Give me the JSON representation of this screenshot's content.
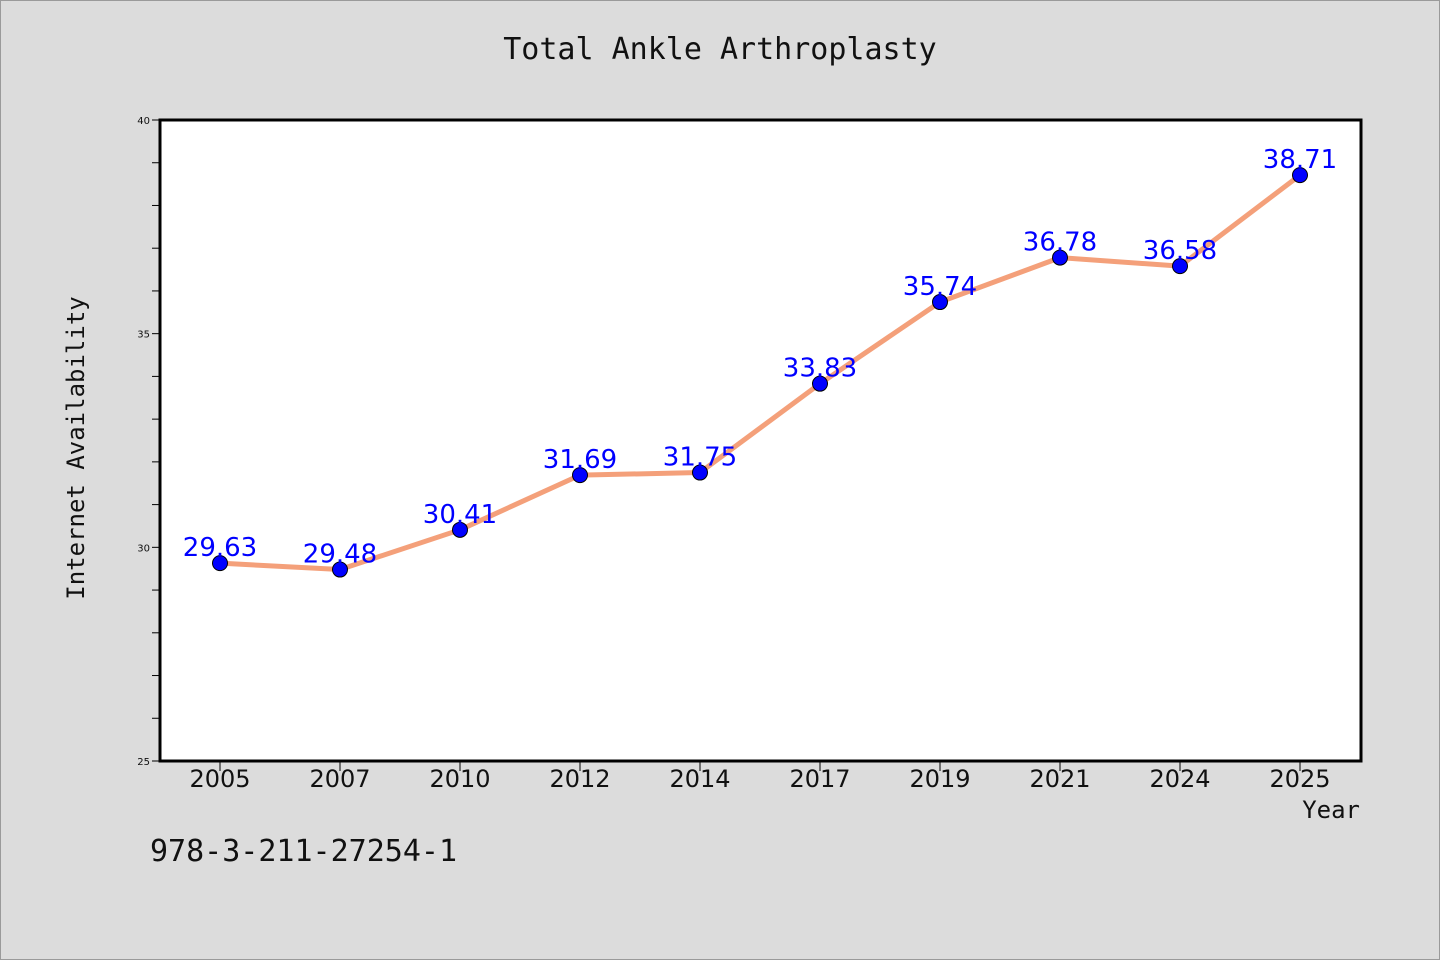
{
  "chart_data": {
    "type": "line",
    "title": "Total Ankle Arthroplasty",
    "xlabel": "Year",
    "ylabel": "Internet Availability",
    "categories": [
      "2005",
      "2007",
      "2010",
      "2012",
      "2014",
      "2017",
      "2019",
      "2021",
      "2024",
      "2025"
    ],
    "values": [
      29.63,
      29.48,
      30.41,
      31.69,
      31.75,
      33.83,
      35.74,
      36.78,
      36.58,
      38.71
    ],
    "data_labels": [
      "29.63",
      "29.48",
      "30.41",
      "31.69",
      "31.75",
      "33.83",
      "35.74",
      "36.78",
      "36.58",
      "38.71"
    ],
    "ylim": [
      25,
      40
    ],
    "y_ticks": [
      25,
      30,
      35,
      40
    ],
    "y_minor_step": 1,
    "grid": false,
    "colors": {
      "line": "#f4a07a",
      "marker": "#0000ff",
      "label": "#0000ff",
      "background": "#dcdcdc",
      "plot_background": "#ffffff"
    }
  },
  "footnote": "978-3-211-27254-1"
}
